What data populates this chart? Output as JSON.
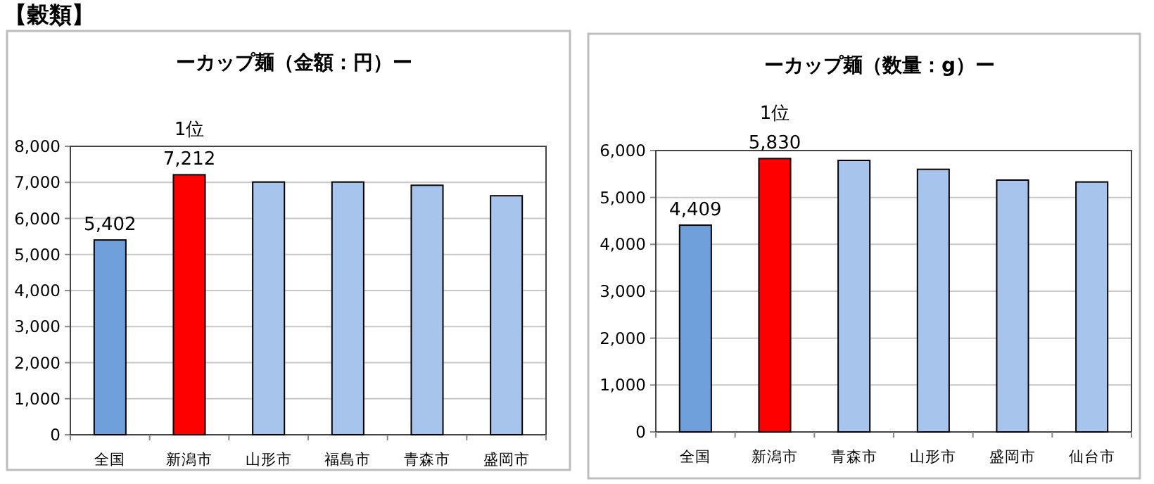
{
  "chart_data": [
    {
      "type": "bar",
      "title": "ーカップ麺（金額：円）ー",
      "annotations": [
        "【穀類】",
        {
          "text": "1位",
          "x": "新潟市",
          "y": 7212
        }
      ],
      "categories": [
        "全国",
        "新潟市",
        "山形市",
        "福島市",
        "青森市",
        "盛岡市"
      ],
      "values": [
        5402,
        7212,
        7010,
        7010,
        6920,
        6630
      ],
      "colors": [
        "#6fa0dc",
        "#ff0000",
        "#a6c4ec",
        "#a6c4ec",
        "#a6c4ec",
        "#a6c4ec"
      ],
      "value_labels": [
        "5,402",
        "7,212",
        null,
        null,
        null,
        null
      ],
      "ylim": [
        0,
        8000
      ],
      "yticks": [
        {
          "value": 0,
          "label": "0"
        },
        {
          "value": 1000,
          "label": "1,000"
        },
        {
          "value": 2000,
          "label": "2,000"
        },
        {
          "value": 3000,
          "label": "3,000"
        },
        {
          "value": 4000,
          "label": "4,000"
        },
        {
          "value": 5000,
          "label": "5,000"
        },
        {
          "value": 6000,
          "label": "6,000"
        },
        {
          "value": 7000,
          "label": "7,000"
        },
        {
          "value": 8000,
          "label": "8,000"
        }
      ],
      "grid": "y"
    },
    {
      "type": "bar",
      "title": "ーカップ麺（数量：g）ー",
      "annotations": [
        {
          "text": "1位",
          "x": "新潟市",
          "y": 5830
        }
      ],
      "categories": [
        "全国",
        "新潟市",
        "青森市",
        "山形市",
        "盛岡市",
        "仙台市"
      ],
      "values": [
        4409,
        5830,
        5790,
        5600,
        5370,
        5330
      ],
      "colors": [
        "#6fa0dc",
        "#ff0000",
        "#a6c4ec",
        "#a6c4ec",
        "#a6c4ec",
        "#a6c4ec"
      ],
      "value_labels": [
        "4,409",
        "5,830",
        null,
        null,
        null,
        null
      ],
      "ylim": [
        0,
        6000
      ],
      "yticks": [
        {
          "value": 0,
          "label": "0"
        },
        {
          "value": 1000,
          "label": "1,000"
        },
        {
          "value": 2000,
          "label": "2,000"
        },
        {
          "value": 3000,
          "label": "3,000"
        },
        {
          "value": 4000,
          "label": "4,000"
        },
        {
          "value": 5000,
          "label": "5,000"
        },
        {
          "value": 6000,
          "label": "6,000"
        }
      ],
      "grid": "y"
    }
  ]
}
